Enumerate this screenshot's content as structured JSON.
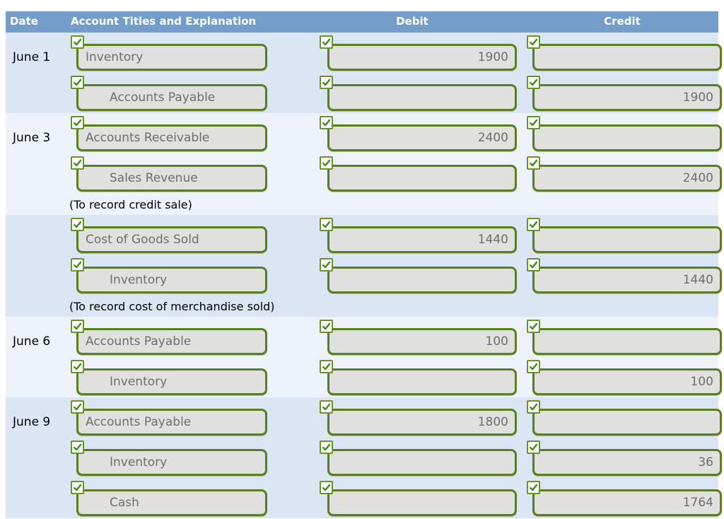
{
  "header": {
    "columns": [
      "Date",
      "Account Titles and Explanation",
      "Debit",
      "Credit"
    ]
  },
  "entries": [
    {
      "date": "June 1",
      "explanation": "",
      "lines": [
        {
          "account": "Inventory",
          "indent": false,
          "debit": "1900",
          "credit": ""
        },
        {
          "account": "Accounts Payable",
          "indent": true,
          "debit": "",
          "credit": "1900"
        }
      ]
    },
    {
      "date": "June 3",
      "explanation": "(To record credit sale)",
      "lines": [
        {
          "account": "Accounts Receivable",
          "indent": false,
          "debit": "2400",
          "credit": ""
        },
        {
          "account": "Sales Revenue",
          "indent": true,
          "debit": "",
          "credit": "2400"
        }
      ]
    },
    {
      "date": "",
      "explanation": "(To record cost of merchandise sold)",
      "lines": [
        {
          "account": "Cost of Goods Sold",
          "indent": false,
          "debit": "1440",
          "credit": ""
        },
        {
          "account": "Inventory",
          "indent": true,
          "debit": "",
          "credit": "1440"
        }
      ]
    },
    {
      "date": "June 6",
      "explanation": "",
      "lines": [
        {
          "account": "Accounts Payable",
          "indent": false,
          "debit": "100",
          "credit": ""
        },
        {
          "account": "Inventory",
          "indent": true,
          "debit": "",
          "credit": "100"
        }
      ]
    },
    {
      "date": "June 9",
      "explanation": "",
      "lines": [
        {
          "account": "Accounts Payable",
          "indent": false,
          "debit": "1800",
          "credit": ""
        },
        {
          "account": "Inventory",
          "indent": true,
          "debit": "",
          "credit": "36"
        },
        {
          "account": "Cash",
          "indent": true,
          "debit": "",
          "credit": "1764"
        }
      ]
    }
  ],
  "icons": {
    "checkbox": "checkmark-icon",
    "checkmark_glyph": "✓"
  },
  "colors": {
    "header_blue": "#749dc9",
    "row_shade_dark": "#dbe5f4",
    "row_shade_light": "#edf2fb",
    "field_border_green": "#5a7e22",
    "checkbox_border_green": "#6a9426",
    "check_green": "#3f8d22",
    "field_background": "#e0e0df",
    "field_text": "#6e6e6e"
  }
}
